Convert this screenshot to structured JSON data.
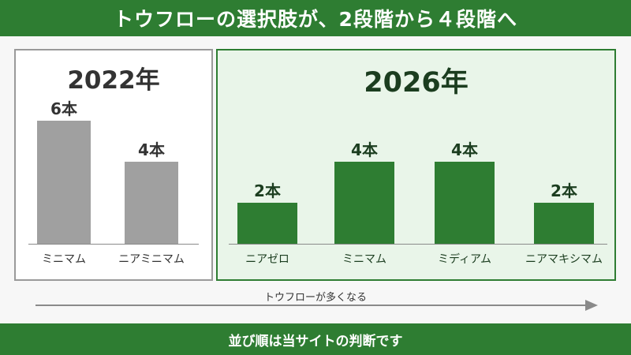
{
  "header": {
    "title": "トウフローの選択肢が、2段階から４段階へ"
  },
  "footer": {
    "note": "並び順は当サイトの判断です"
  },
  "arrow": {
    "label": "トウフローが多くなる"
  },
  "colors": {
    "green": "#2e7d32",
    "gray": "#a0a0a0",
    "panel_green_bg": "#e9f5e9"
  },
  "chart_data": [
    {
      "type": "bar",
      "title": "2022年",
      "categories": [
        "ミニマム",
        "ニアミニマム"
      ],
      "values": [
        6,
        4
      ],
      "value_labels": [
        "6本",
        "4本"
      ],
      "ylim": [
        0,
        8
      ],
      "color": "#a0a0a0"
    },
    {
      "type": "bar",
      "title": "2026年",
      "categories": [
        "ニアゼロ",
        "ミニマム",
        "ミディアム",
        "ニアマキシマム"
      ],
      "values": [
        2,
        4,
        4,
        2
      ],
      "value_labels": [
        "2本",
        "4本",
        "4本",
        "2本"
      ],
      "ylim": [
        0,
        8
      ],
      "color": "#2e7d32"
    }
  ]
}
